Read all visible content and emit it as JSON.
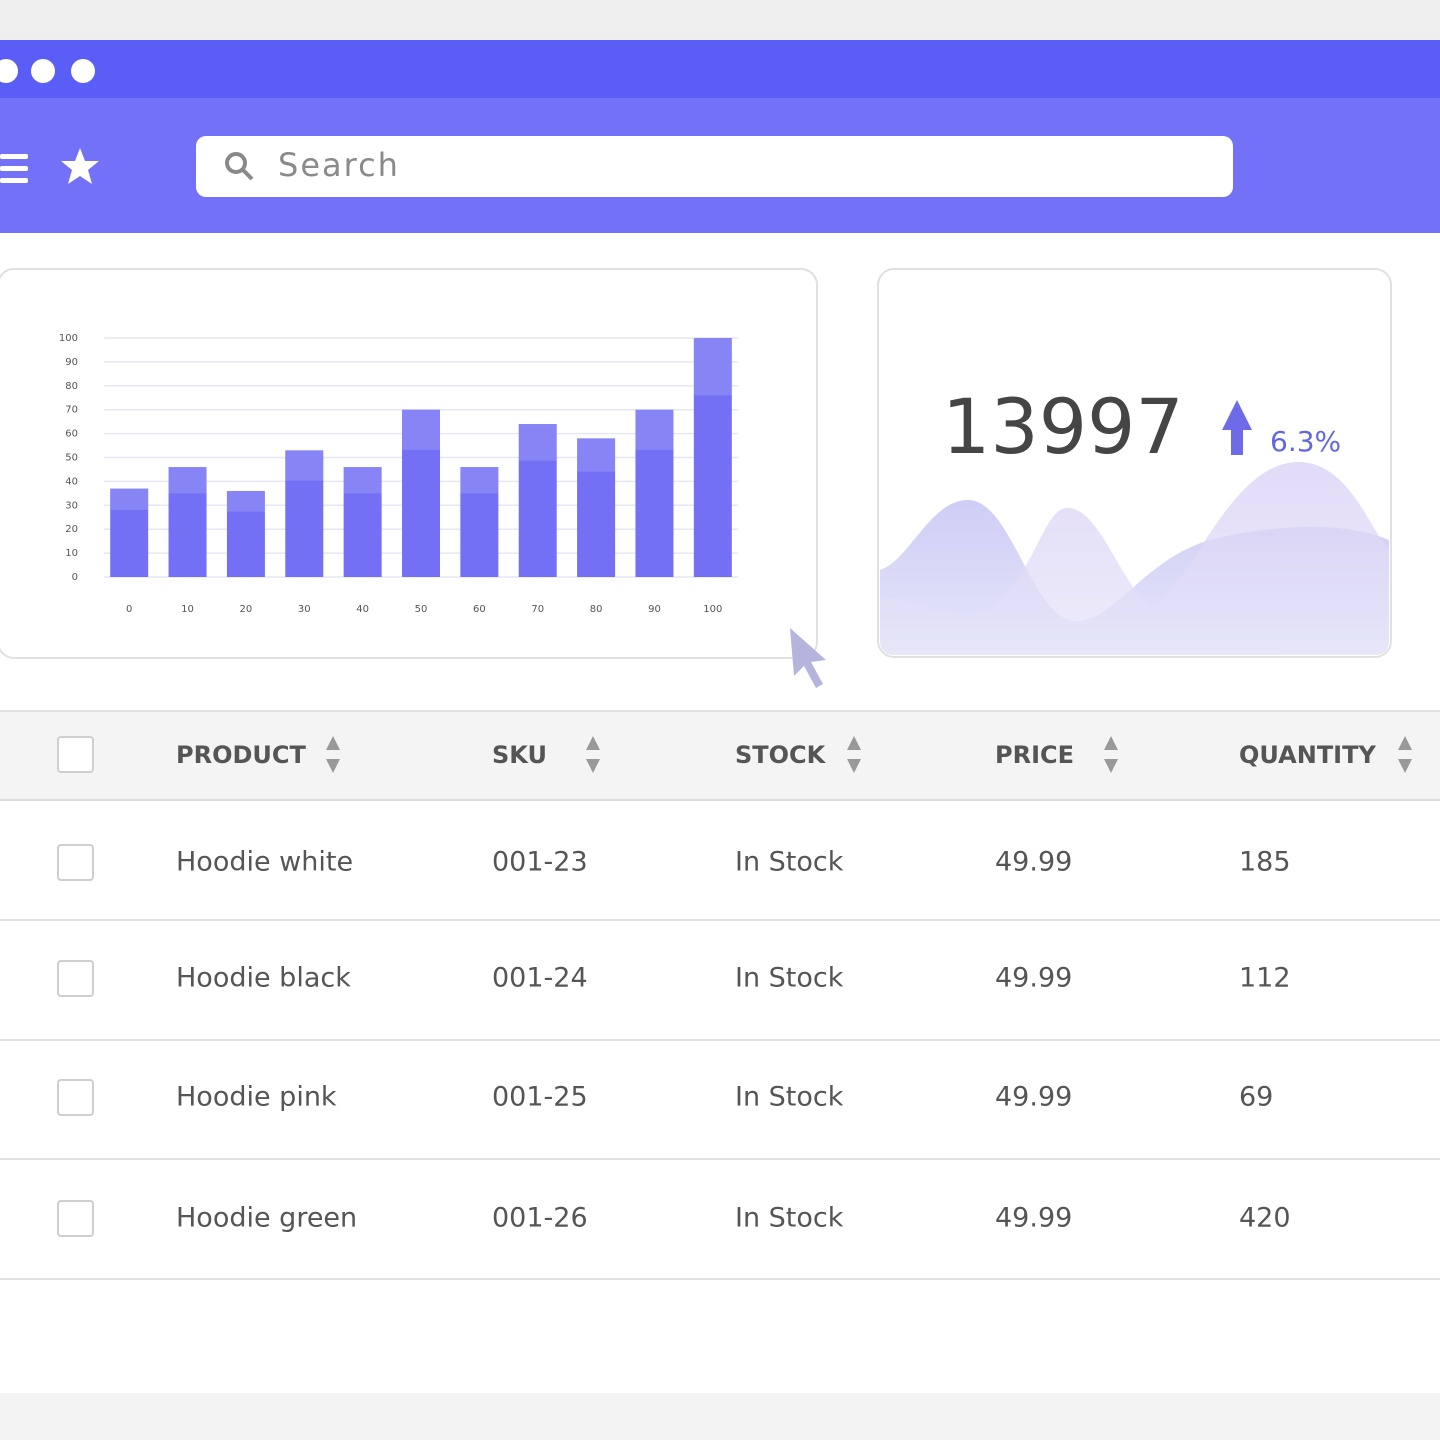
{
  "search_placeholder": "Search",
  "chart_data": {
    "type": "bar",
    "categories": [
      "0",
      "10",
      "20",
      "30",
      "40",
      "50",
      "60",
      "70",
      "80",
      "90",
      "100"
    ],
    "values": [
      37,
      46,
      36,
      53,
      46,
      70,
      46,
      64,
      58,
      70,
      100
    ],
    "color": "#7370f5",
    "ylim": [
      0,
      100
    ],
    "yticks": [
      0,
      10,
      20,
      30,
      40,
      50,
      60,
      70,
      80,
      90,
      100
    ],
    "grid": true
  },
  "stat": {
    "value": "13997",
    "change": "6.3%"
  },
  "table": {
    "headers": [
      "PRODUCT",
      "SKU",
      "STOCK",
      "PRICE",
      "QUANTITY"
    ],
    "rows": [
      [
        "Hoodie white",
        "001-23",
        "In Stock",
        "49.99",
        "185"
      ],
      [
        "Hoodie black",
        "001-24",
        "In Stock",
        "49.99",
        "112"
      ],
      [
        "Hoodie pink",
        "001-25",
        "In Stock",
        "49.99",
        "69"
      ],
      [
        "Hoodie green",
        "001-26",
        "In Stock",
        "49.99",
        "420"
      ]
    ]
  }
}
